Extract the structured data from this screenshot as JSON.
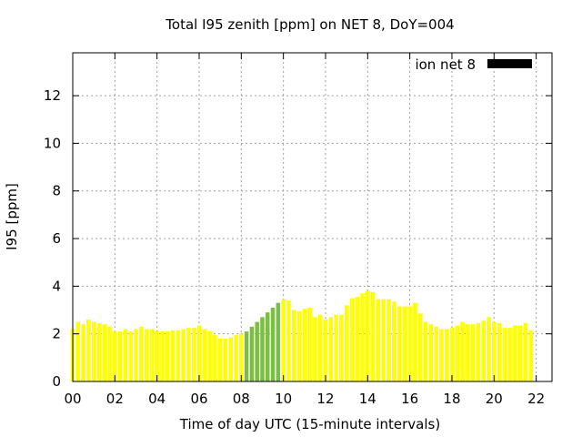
{
  "chart_data": {
    "type": "bar",
    "title": "Total I95 zenith [ppm] on NET 8, DoY=004",
    "xlabel": "Time of day UTC (15-minute intervals)",
    "ylabel": "I95 [ppm]",
    "xlim": [
      0,
      22.75
    ],
    "ylim": [
      0,
      13.8
    ],
    "xticks": [
      "00",
      "02",
      "04",
      "06",
      "08",
      "10",
      "12",
      "14",
      "16",
      "18",
      "20",
      "22"
    ],
    "yticks": [
      "0",
      "2",
      "4",
      "6",
      "8",
      "10",
      "12"
    ],
    "grid": true,
    "legend": {
      "label": "ion net 8",
      "color": "#000000",
      "placement": "top-right"
    },
    "interval_hours": 0.25,
    "colors": {
      "normal": "#ffff00",
      "flagged": "#7cbd45"
    },
    "start_hour": 0,
    "values": [
      2.2,
      2.5,
      2.4,
      2.6,
      2.5,
      2.45,
      2.4,
      2.3,
      2.1,
      2.1,
      2.2,
      2.1,
      2.2,
      2.3,
      2.2,
      2.2,
      2.1,
      2.1,
      2.1,
      2.15,
      2.15,
      2.2,
      2.25,
      2.25,
      2.35,
      2.2,
      2.1,
      1.95,
      1.8,
      1.8,
      1.85,
      1.95,
      2.0,
      2.1,
      2.3,
      2.5,
      2.7,
      2.9,
      3.1,
      3.3,
      3.45,
      3.4,
      3.0,
      2.95,
      3.05,
      3.1,
      2.7,
      2.8,
      2.6,
      2.7,
      2.8,
      2.8,
      3.2,
      3.5,
      3.55,
      3.7,
      3.8,
      3.75,
      3.45,
      3.45,
      3.45,
      3.35,
      3.15,
      3.15,
      3.15,
      3.3,
      2.85,
      2.5,
      2.4,
      2.3,
      2.2,
      2.2,
      2.25,
      2.35,
      2.5,
      2.4,
      2.4,
      2.45,
      2.55,
      2.7,
      2.5,
      2.45,
      2.25,
      2.25,
      2.35,
      2.35,
      2.45,
      2.15
    ],
    "flags": [
      0,
      0,
      0,
      0,
      0,
      0,
      0,
      0,
      0,
      0,
      0,
      0,
      0,
      0,
      0,
      0,
      0,
      0,
      0,
      0,
      0,
      0,
      0,
      0,
      0,
      0,
      0,
      0,
      0,
      0,
      0,
      0,
      0,
      1,
      1,
      1,
      1,
      1,
      1,
      1,
      0,
      0,
      0,
      0,
      0,
      0,
      0,
      0,
      0,
      0,
      0,
      0,
      0,
      0,
      0,
      0,
      0,
      0,
      0,
      0,
      0,
      0,
      0,
      0,
      0,
      0,
      0,
      0,
      0,
      0,
      0,
      0,
      0,
      0,
      0,
      0,
      0,
      0,
      0,
      0,
      0,
      0,
      0,
      0,
      0,
      0,
      0,
      0,
      0
    ]
  }
}
